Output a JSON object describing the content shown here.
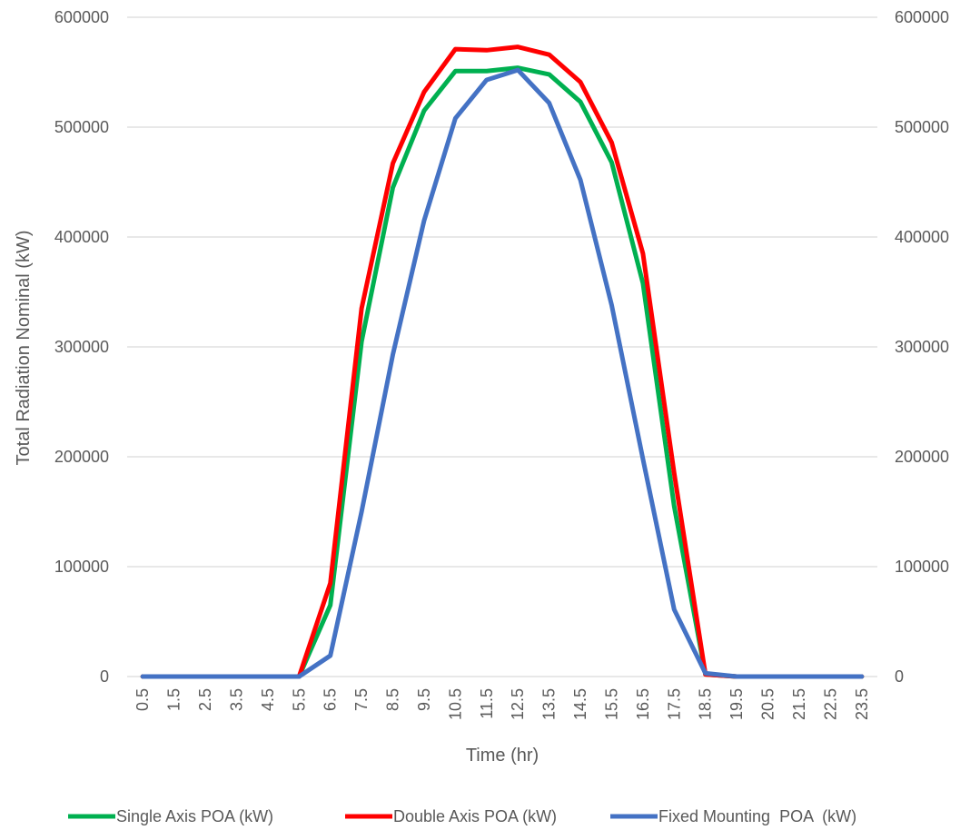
{
  "chart_data": {
    "type": "line",
    "title": "",
    "xlabel": "Time (hr)",
    "ylabel": "Total Radiation Nominal (kW)",
    "ylim": [
      0,
      600000
    ],
    "y_ticks": [
      "0",
      "100000",
      "200000",
      "300000",
      "400000",
      "500000",
      "600000"
    ],
    "secondary_y_ticks": [
      "0",
      "100000",
      "200000",
      "300000",
      "400000",
      "500000",
      "600000"
    ],
    "grid": true,
    "legend_position": "bottom",
    "categories": [
      "0.5",
      "1.5",
      "2.5",
      "3.5",
      "4.5",
      "5.5",
      "6.5",
      "7.5",
      "8.5",
      "9.5",
      "10.5",
      "11.5",
      "12.5",
      "13.5",
      "14.5",
      "15.5",
      "16.5",
      "17.5",
      "18.5",
      "19.5",
      "20.5",
      "21.5",
      "22.5",
      "23.5"
    ],
    "series": [
      {
        "name": "Single Axis POA (kW)",
        "color": "#00b050",
        "values": [
          0,
          0,
          0,
          0,
          0,
          0,
          65000,
          305000,
          445000,
          515000,
          551000,
          551000,
          554000,
          548000,
          523000,
          468000,
          358000,
          155000,
          2000,
          0,
          0,
          0,
          0,
          0
        ]
      },
      {
        "name": "Double Axis POA (kW)",
        "color": "#ff0000",
        "values": [
          0,
          0,
          0,
          0,
          0,
          0,
          85000,
          335000,
          467000,
          532000,
          571000,
          570000,
          573000,
          566000,
          541000,
          486000,
          385000,
          185000,
          2000,
          0,
          0,
          0,
          0,
          0
        ]
      },
      {
        "name": "Fixed Mounting  POA  (kW)",
        "color": "#4472c4",
        "values": [
          0,
          0,
          0,
          0,
          0,
          0,
          19000,
          150000,
          293000,
          415000,
          508000,
          543000,
          552000,
          522000,
          452000,
          338000,
          198000,
          61000,
          3000,
          0,
          0,
          0,
          0,
          0
        ]
      }
    ]
  }
}
